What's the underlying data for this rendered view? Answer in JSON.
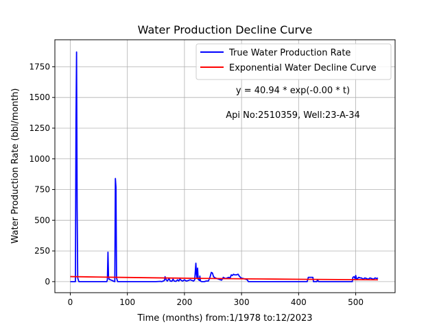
{
  "chart_data": {
    "type": "line",
    "title": "Water Production Decline Curve",
    "xlabel": "Time (months) from:1/1978 to:12/2023",
    "ylabel": "Water Production Rate (bbl/month)",
    "xlim": [
      -27,
      569
    ],
    "ylim": [
      -90,
      1970
    ],
    "xticks": [
      0,
      100,
      200,
      300,
      400,
      500
    ],
    "yticks": [
      0,
      250,
      500,
      750,
      1000,
      1250,
      1500,
      1750
    ],
    "grid": true,
    "legend_position": "top-right",
    "series": [
      {
        "name": "True Water Production Rate",
        "color": "#0000ff",
        "points": [
          [
            0,
            0
          ],
          [
            9,
            0
          ],
          [
            10,
            1300
          ],
          [
            11,
            1870
          ],
          [
            12,
            600
          ],
          [
            13,
            30
          ],
          [
            15,
            0
          ],
          [
            64,
            0
          ],
          [
            65,
            15
          ],
          [
            66,
            240
          ],
          [
            67,
            40
          ],
          [
            68,
            20
          ],
          [
            70,
            15
          ],
          [
            73,
            10
          ],
          [
            75,
            5
          ],
          [
            78,
            0
          ],
          [
            79,
            840
          ],
          [
            80,
            770
          ],
          [
            81,
            30
          ],
          [
            83,
            0
          ],
          [
            150,
            0
          ],
          [
            158,
            2
          ],
          [
            160,
            0
          ],
          [
            163,
            5
          ],
          [
            165,
            10
          ],
          [
            166,
            40
          ],
          [
            168,
            15
          ],
          [
            170,
            5
          ],
          [
            173,
            25
          ],
          [
            175,
            5
          ],
          [
            178,
            3
          ],
          [
            180,
            20
          ],
          [
            182,
            5
          ],
          [
            185,
            2
          ],
          [
            188,
            15
          ],
          [
            190,
            5
          ],
          [
            192,
            20
          ],
          [
            195,
            8
          ],
          [
            197,
            5
          ],
          [
            200,
            15
          ],
          [
            203,
            5
          ],
          [
            206,
            8
          ],
          [
            210,
            15
          ],
          [
            213,
            10
          ],
          [
            216,
            5
          ],
          [
            218,
            15
          ],
          [
            220,
            150
          ],
          [
            221,
            60
          ],
          [
            222,
            25
          ],
          [
            223,
            110
          ],
          [
            224,
            20
          ],
          [
            226,
            10
          ],
          [
            227,
            45
          ],
          [
            228,
            5
          ],
          [
            230,
            0
          ],
          [
            235,
            0
          ],
          [
            238,
            5
          ],
          [
            242,
            5
          ],
          [
            245,
            40
          ],
          [
            247,
            75
          ],
          [
            249,
            70
          ],
          [
            251,
            40
          ],
          [
            254,
            30
          ],
          [
            257,
            25
          ],
          [
            260,
            20
          ],
          [
            263,
            15
          ],
          [
            265,
            12
          ],
          [
            267,
            25
          ],
          [
            268,
            35
          ],
          [
            270,
            30
          ],
          [
            272,
            25
          ],
          [
            275,
            30
          ],
          [
            277,
            35
          ],
          [
            280,
            30
          ],
          [
            282,
            55
          ],
          [
            284,
            50
          ],
          [
            286,
            60
          ],
          [
            288,
            55
          ],
          [
            291,
            55
          ],
          [
            294,
            60
          ],
          [
            296,
            45
          ],
          [
            299,
            30
          ],
          [
            303,
            25
          ],
          [
            307,
            20
          ],
          [
            310,
            15
          ],
          [
            312,
            0
          ],
          [
            415,
            0
          ],
          [
            417,
            35
          ],
          [
            420,
            35
          ],
          [
            425,
            35
          ],
          [
            426,
            0
          ],
          [
            432,
            0
          ],
          [
            433,
            15
          ],
          [
            435,
            0
          ],
          [
            494,
            0
          ],
          [
            495,
            35
          ],
          [
            497,
            40
          ],
          [
            499,
            25
          ],
          [
            500,
            50
          ],
          [
            502,
            15
          ],
          [
            505,
            35
          ],
          [
            508,
            30
          ],
          [
            510,
            30
          ],
          [
            513,
            20
          ],
          [
            516,
            30
          ],
          [
            519,
            25
          ],
          [
            522,
            20
          ],
          [
            525,
            30
          ],
          [
            528,
            25
          ],
          [
            531,
            20
          ],
          [
            534,
            30
          ],
          [
            537,
            25
          ],
          [
            539,
            30
          ]
        ]
      },
      {
        "name": "Exponential Water Decline Curve",
        "color": "#ff0000",
        "points": [
          [
            0,
            40.94
          ],
          [
            45,
            37.6
          ],
          [
            90,
            34.5
          ],
          [
            135,
            31.7
          ],
          [
            180,
            29.1
          ],
          [
            225,
            26.7
          ],
          [
            270,
            24.5
          ],
          [
            315,
            22.5
          ],
          [
            360,
            20.7
          ],
          [
            405,
            19.0
          ],
          [
            450,
            17.4
          ],
          [
            495,
            16.0
          ],
          [
            539,
            14.8
          ]
        ]
      }
    ],
    "annotations": [
      "y = 40.94 * exp(-0.00 * t)",
      "Api No:2510359, Well:23-A-34"
    ]
  }
}
